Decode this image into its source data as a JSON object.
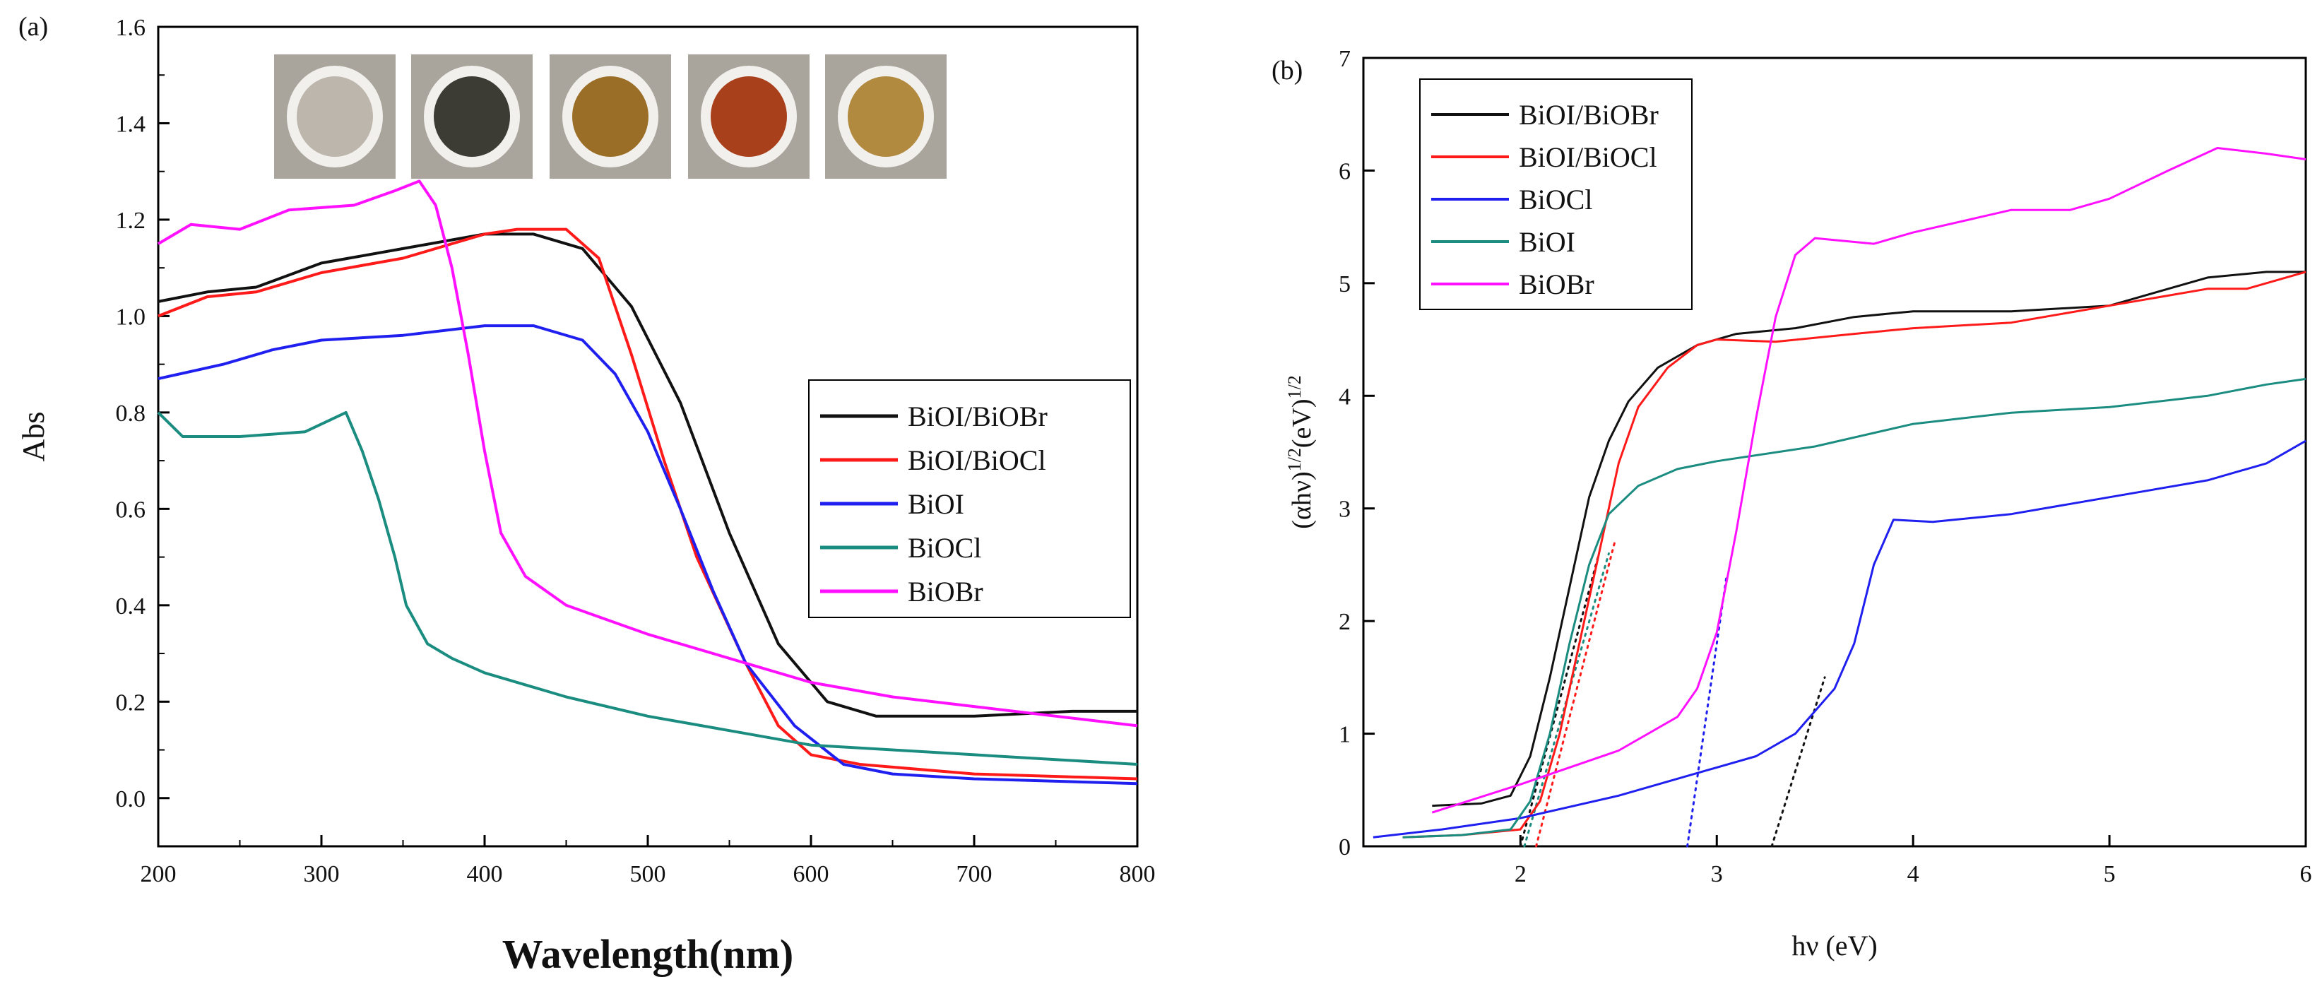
{
  "colors": {
    "black": "#111111",
    "red": "#ff1a1a",
    "blue": "#1f1fef",
    "teal": "#1a8c80",
    "magenta": "#ff10ff"
  },
  "photos": {
    "swatches": [
      "#bdb6ac",
      "#3c3b34",
      "#9a6e26",
      "#a8401b",
      "#b18a3f"
    ]
  },
  "chart_data": [
    {
      "panel": "(a)",
      "type": "line",
      "title": "",
      "xlabel": "Wavelength(nm)",
      "ylabel": "Abs",
      "xlim": [
        200,
        800
      ],
      "ylim": [
        -0.1,
        1.6
      ],
      "xticks": [
        200,
        300,
        400,
        500,
        600,
        700,
        800
      ],
      "yticks": [
        0.0,
        0.2,
        0.4,
        0.6,
        0.8,
        1.0,
        1.2,
        1.4,
        1.6
      ],
      "ytick_labels": [
        "0.0",
        "0.2",
        "0.4",
        "0.6",
        "0.8",
        "1.0",
        "1.2",
        "1.4",
        "1.6"
      ],
      "legend": "center-right",
      "series": [
        {
          "name": "BiOI/BiOBr",
          "color_key": "black",
          "points": [
            [
              200,
              1.03
            ],
            [
              230,
              1.05
            ],
            [
              260,
              1.06
            ],
            [
              300,
              1.11
            ],
            [
              350,
              1.14
            ],
            [
              400,
              1.17
            ],
            [
              430,
              1.17
            ],
            [
              460,
              1.14
            ],
            [
              490,
              1.02
            ],
            [
              520,
              0.82
            ],
            [
              550,
              0.55
            ],
            [
              580,
              0.32
            ],
            [
              610,
              0.2
            ],
            [
              640,
              0.17
            ],
            [
              700,
              0.17
            ],
            [
              760,
              0.18
            ],
            [
              800,
              0.18
            ]
          ]
        },
        {
          "name": "BiOI/BiOCl",
          "color_key": "red",
          "points": [
            [
              200,
              1.0
            ],
            [
              230,
              1.04
            ],
            [
              260,
              1.05
            ],
            [
              300,
              1.09
            ],
            [
              350,
              1.12
            ],
            [
              400,
              1.17
            ],
            [
              420,
              1.18
            ],
            [
              450,
              1.18
            ],
            [
              470,
              1.12
            ],
            [
              490,
              0.92
            ],
            [
              510,
              0.7
            ],
            [
              530,
              0.5
            ],
            [
              560,
              0.28
            ],
            [
              580,
              0.15
            ],
            [
              600,
              0.09
            ],
            [
              630,
              0.07
            ],
            [
              700,
              0.05
            ],
            [
              800,
              0.04
            ]
          ]
        },
        {
          "name": "BiOI",
          "color_key": "blue",
          "points": [
            [
              200,
              0.87
            ],
            [
              240,
              0.9
            ],
            [
              270,
              0.93
            ],
            [
              300,
              0.95
            ],
            [
              350,
              0.96
            ],
            [
              400,
              0.98
            ],
            [
              430,
              0.98
            ],
            [
              460,
              0.95
            ],
            [
              480,
              0.88
            ],
            [
              500,
              0.76
            ],
            [
              520,
              0.6
            ],
            [
              540,
              0.43
            ],
            [
              560,
              0.28
            ],
            [
              590,
              0.15
            ],
            [
              620,
              0.07
            ],
            [
              650,
              0.05
            ],
            [
              700,
              0.04
            ],
            [
              800,
              0.03
            ]
          ]
        },
        {
          "name": "BiOCl",
          "color_key": "teal",
          "points": [
            [
              200,
              0.8
            ],
            [
              215,
              0.75
            ],
            [
              250,
              0.75
            ],
            [
              290,
              0.76
            ],
            [
              315,
              0.8
            ],
            [
              325,
              0.72
            ],
            [
              335,
              0.62
            ],
            [
              345,
              0.5
            ],
            [
              352,
              0.4
            ],
            [
              365,
              0.32
            ],
            [
              380,
              0.29
            ],
            [
              400,
              0.26
            ],
            [
              450,
              0.21
            ],
            [
              500,
              0.17
            ],
            [
              550,
              0.14
            ],
            [
              600,
              0.11
            ],
            [
              650,
              0.1
            ],
            [
              700,
              0.09
            ],
            [
              750,
              0.08
            ],
            [
              800,
              0.07
            ]
          ]
        },
        {
          "name": "BiOBr",
          "color_key": "magenta",
          "points": [
            [
              200,
              1.15
            ],
            [
              220,
              1.19
            ],
            [
              250,
              1.18
            ],
            [
              280,
              1.22
            ],
            [
              320,
              1.23
            ],
            [
              345,
              1.26
            ],
            [
              360,
              1.28
            ],
            [
              370,
              1.23
            ],
            [
              380,
              1.1
            ],
            [
              390,
              0.92
            ],
            [
              400,
              0.72
            ],
            [
              410,
              0.55
            ],
            [
              425,
              0.46
            ],
            [
              450,
              0.4
            ],
            [
              500,
              0.34
            ],
            [
              550,
              0.29
            ],
            [
              600,
              0.24
            ],
            [
              650,
              0.21
            ],
            [
              700,
              0.19
            ],
            [
              750,
              0.17
            ],
            [
              800,
              0.15
            ]
          ]
        }
      ]
    },
    {
      "panel": "(b)",
      "type": "line",
      "title": "",
      "xlabel": "hν (eV)",
      "ylabel": "(αhν)^1/2(eV)^1/2",
      "ylabel_parts": [
        "(αhν)",
        "1/2",
        "(eV)",
        "1/2"
      ],
      "xlim": [
        1.2,
        6.0
      ],
      "ylim": [
        0,
        7
      ],
      "xticks": [
        2,
        3,
        4,
        5,
        6
      ],
      "yticks": [
        0,
        1,
        2,
        3,
        4,
        5,
        6,
        7
      ],
      "legend": "top-left",
      "series": [
        {
          "name": "BiOI/BiOBr",
          "color_key": "black",
          "points": [
            [
              1.55,
              0.36
            ],
            [
              1.8,
              0.38
            ],
            [
              1.95,
              0.45
            ],
            [
              2.05,
              0.8
            ],
            [
              2.15,
              1.5
            ],
            [
              2.25,
              2.3
            ],
            [
              2.35,
              3.1
            ],
            [
              2.45,
              3.6
            ],
            [
              2.55,
              3.95
            ],
            [
              2.7,
              4.25
            ],
            [
              2.9,
              4.45
            ],
            [
              3.1,
              4.55
            ],
            [
              3.4,
              4.6
            ],
            [
              3.7,
              4.7
            ],
            [
              4.0,
              4.75
            ],
            [
              4.5,
              4.75
            ],
            [
              5.0,
              4.8
            ],
            [
              5.5,
              5.05
            ],
            [
              5.8,
              5.1
            ],
            [
              6.0,
              5.1
            ]
          ]
        },
        {
          "name": "BiOI/BiOCl",
          "color_key": "red",
          "points": [
            [
              1.4,
              0.08
            ],
            [
              1.7,
              0.1
            ],
            [
              2.0,
              0.15
            ],
            [
              2.1,
              0.4
            ],
            [
              2.2,
              1.0
            ],
            [
              2.3,
              1.8
            ],
            [
              2.4,
              2.6
            ],
            [
              2.5,
              3.4
            ],
            [
              2.6,
              3.9
            ],
            [
              2.75,
              4.25
            ],
            [
              2.9,
              4.45
            ],
            [
              3.0,
              4.5
            ],
            [
              3.3,
              4.48
            ],
            [
              3.7,
              4.55
            ],
            [
              4.0,
              4.6
            ],
            [
              4.5,
              4.65
            ],
            [
              5.0,
              4.8
            ],
            [
              5.5,
              4.95
            ],
            [
              5.7,
              4.95
            ],
            [
              6.0,
              5.1
            ]
          ]
        },
        {
          "name": "BiOCl",
          "color_key": "blue",
          "points": [
            [
              1.25,
              0.08
            ],
            [
              1.6,
              0.15
            ],
            [
              2.0,
              0.25
            ],
            [
              2.5,
              0.45
            ],
            [
              3.0,
              0.7
            ],
            [
              3.2,
              0.8
            ],
            [
              3.4,
              1.0
            ],
            [
              3.6,
              1.4
            ],
            [
              3.7,
              1.8
            ],
            [
              3.8,
              2.5
            ],
            [
              3.9,
              2.9
            ],
            [
              4.1,
              2.88
            ],
            [
              4.5,
              2.95
            ],
            [
              5.0,
              3.1
            ],
            [
              5.5,
              3.25
            ],
            [
              5.8,
              3.4
            ],
            [
              6.0,
              3.6
            ]
          ]
        },
        {
          "name": "BiOI",
          "color_key": "teal",
          "points": [
            [
              1.4,
              0.08
            ],
            [
              1.7,
              0.1
            ],
            [
              1.95,
              0.15
            ],
            [
              2.05,
              0.4
            ],
            [
              2.15,
              1.0
            ],
            [
              2.25,
              1.8
            ],
            [
              2.35,
              2.5
            ],
            [
              2.45,
              2.95
            ],
            [
              2.6,
              3.2
            ],
            [
              2.8,
              3.35
            ],
            [
              3.0,
              3.42
            ],
            [
              3.5,
              3.55
            ],
            [
              4.0,
              3.75
            ],
            [
              4.5,
              3.85
            ],
            [
              5.0,
              3.9
            ],
            [
              5.5,
              4.0
            ],
            [
              5.8,
              4.1
            ],
            [
              6.0,
              4.15
            ]
          ]
        },
        {
          "name": "BiOBr",
          "color_key": "magenta",
          "points": [
            [
              1.55,
              0.3
            ],
            [
              2.0,
              0.55
            ],
            [
              2.5,
              0.85
            ],
            [
              2.8,
              1.15
            ],
            [
              2.9,
              1.4
            ],
            [
              3.0,
              1.9
            ],
            [
              3.1,
              2.8
            ],
            [
              3.2,
              3.8
            ],
            [
              3.3,
              4.7
            ],
            [
              3.4,
              5.25
            ],
            [
              3.5,
              5.4
            ],
            [
              3.8,
              5.35
            ],
            [
              4.0,
              5.45
            ],
            [
              4.5,
              5.65
            ],
            [
              4.8,
              5.65
            ],
            [
              5.0,
              5.75
            ],
            [
              5.3,
              6.0
            ],
            [
              5.55,
              6.2
            ],
            [
              5.8,
              6.15
            ],
            [
              6.0,
              6.1
            ]
          ]
        }
      ],
      "fit_lines": [
        {
          "color_key": "teal",
          "points": [
            [
              2.02,
              0.0
            ],
            [
              2.45,
              2.6
            ]
          ]
        },
        {
          "color_key": "black",
          "points": [
            [
              2.0,
              0.0
            ],
            [
              2.4,
              2.6
            ]
          ]
        },
        {
          "color_key": "red",
          "points": [
            [
              2.08,
              0.0
            ],
            [
              2.48,
              2.7
            ]
          ]
        },
        {
          "color_key": "blue",
          "points": [
            [
              2.85,
              0.0
            ],
            [
              3.05,
              2.4
            ]
          ]
        },
        {
          "color_key": "black",
          "points": [
            [
              3.28,
              0.0
            ],
            [
              3.55,
              1.5
            ]
          ]
        }
      ]
    }
  ]
}
